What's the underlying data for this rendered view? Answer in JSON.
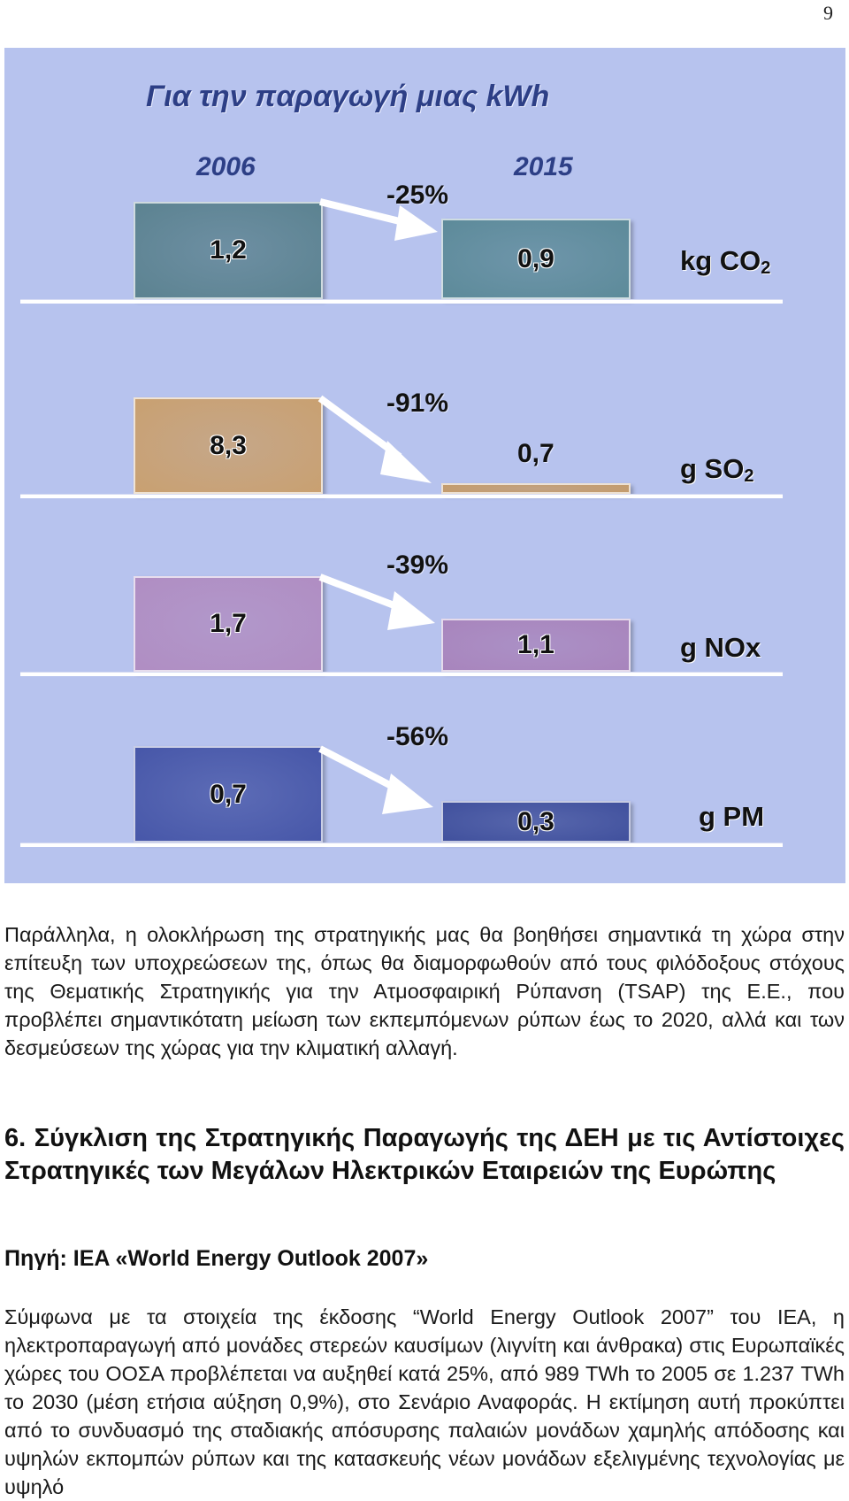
{
  "page_number": "9",
  "figure": {
    "title": "Για την παραγωγή μιας kWh",
    "year_left": "2006",
    "year_right": "2015",
    "rows": [
      {
        "before": "1,2",
        "after": "0,9",
        "change": "-25%",
        "unit_main": "kg CO",
        "unit_sub": "2",
        "color_before": "#5b8290",
        "color_after": "#5c8a99"
      },
      {
        "before": "8,3",
        "after": "0,7",
        "change": "-91%",
        "unit_main": "g SO",
        "unit_sub": "2",
        "color_before": "#c9a070",
        "color_after": "#c49a68"
      },
      {
        "before": "1,7",
        "after": "1,1",
        "change": "-39%",
        "unit_main": "g NOx",
        "unit_sub": "",
        "color_before": "#b08dc2",
        "color_after": "#a884bc"
      },
      {
        "before": "0,7",
        "after": "0,3",
        "change": "-56%",
        "unit_main": "g PM",
        "unit_sub": "",
        "color_before": "#4656a8",
        "color_after": "#3f4f9c"
      }
    ]
  },
  "paragraph_1": "Παράλληλα, η ολοκλήρωση της στρατηγικής μας θα βοηθήσει σημαντικά τη χώρα στην επίτευξη των υποχρεώσεων της, όπως θα διαμορφωθούν από τους φιλόδοξους στόχους της Θεματικής Στρατηγικής για την Ατμοσφαιρική Ρύπανση (TSAP) της Ε.Ε., που προβλέπει σημαντικότατη μείωση των εκπεμπόμενων ρύπων έως το 2020, αλλά και των δεσμεύσεων της χώρας για την κλιματική αλλαγή.",
  "section_heading": "6. Σύγκλιση της Στρατηγικής Παραγωγής της ΔΕΗ με τις Αντίστοιχες Στρατηγικές των Μεγάλων Ηλεκτρικών Εταιρειών της Ευρώπης",
  "source_line": "Πηγή: IEA «World Energy Outlook 2007»",
  "paragraph_2": "Σύμφωνα με τα στοιχεία της έκδοσης “World Energy Outlook 2007” του IEA, η ηλεκτροπαραγωγή από μονάδες στερεών καυσίμων (λιγνίτη και άνθρακα) στις Ευρωπαϊκές χώρες του ΟΟΣΑ προβλέπεται να αυξηθεί κατά 25%, από 989 TWh το 2005 σε 1.237 TWh το 2030 (μέση ετήσια αύξηση 0,9%), στο Σενάριο Αναφοράς. Η εκτίμηση αυτή προκύπτει από το συνδυασμό της σταδιακής απόσυρσης παλαιών μονάδων χαμηλής απόδοσης και υψηλών εκπομπών ρύπων και της κατασκευής νέων μονάδων εξελιγμένης τεχνολογίας με υψηλό"
}
